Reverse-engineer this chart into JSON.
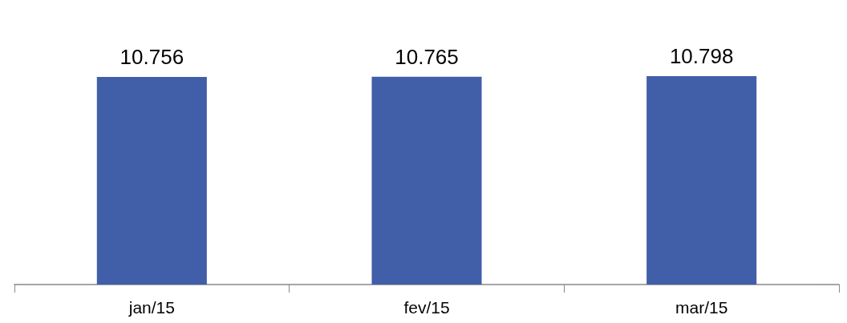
{
  "chart_data": {
    "type": "bar",
    "categories": [
      "jan/15",
      "fev/15",
      "mar/15"
    ],
    "values": [
      10756,
      10765,
      10798
    ],
    "value_labels": [
      "10.756",
      "10.765",
      "10.798"
    ],
    "color": "#415ea8",
    "tick_labels": "x"
  }
}
